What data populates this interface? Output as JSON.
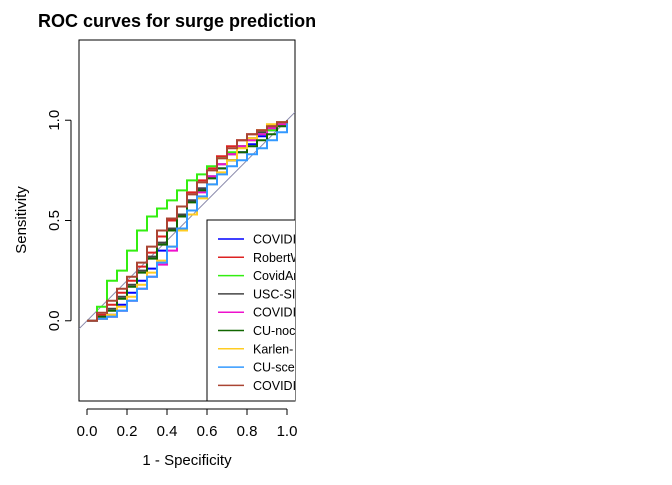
{
  "chart_data": {
    "type": "line",
    "title": "ROC curves for surge prediction",
    "xlabel": "1 - Specificity",
    "ylabel": "Sensitivity",
    "xlim": [
      -0.04,
      1.04
    ],
    "ylim": [
      -0.4,
      1.4
    ],
    "x_ticks": [
      0.0,
      0.2,
      0.4,
      0.6,
      0.8,
      1.0
    ],
    "x_tick_labels": [
      "0.0",
      "0.2",
      "0.4",
      "0.6",
      "0.8",
      "1.0"
    ],
    "y_ticks": [
      0.0,
      0.5,
      1.0
    ],
    "y_tick_labels": [
      "0.0",
      "0.5",
      "1.0"
    ],
    "diagonal_reference": true,
    "grid": false,
    "legend_placement": "bottom-right (clipped at plot edge)",
    "series": [
      {
        "name": "COVIDI",
        "color": "#0000ff",
        "x": [
          0,
          0.05,
          0.1,
          0.15,
          0.2,
          0.25,
          0.3,
          0.35,
          0.4,
          0.45,
          0.5,
          0.55,
          0.6,
          0.65,
          0.7,
          0.75,
          0.8,
          0.85,
          0.9,
          0.95,
          1
        ],
        "y": [
          0,
          0.01,
          0.03,
          0.08,
          0.14,
          0.2,
          0.26,
          0.35,
          0.45,
          0.53,
          0.6,
          0.66,
          0.72,
          0.76,
          0.8,
          0.84,
          0.88,
          0.92,
          0.95,
          0.98,
          1
        ]
      },
      {
        "name": "RobertW",
        "color": "#dd2222",
        "x": [
          0,
          0.05,
          0.1,
          0.15,
          0.2,
          0.25,
          0.3,
          0.35,
          0.4,
          0.45,
          0.5,
          0.55,
          0.6,
          0.65,
          0.7,
          0.75,
          0.8,
          0.85,
          0.9,
          0.95,
          1
        ],
        "y": [
          0,
          0.03,
          0.08,
          0.14,
          0.2,
          0.27,
          0.34,
          0.42,
          0.5,
          0.57,
          0.64,
          0.7,
          0.76,
          0.82,
          0.87,
          0.9,
          0.93,
          0.95,
          0.97,
          0.99,
          1
        ]
      },
      {
        "name": "CovidAr",
        "color": "#33ee11",
        "x": [
          0,
          0.05,
          0.1,
          0.15,
          0.2,
          0.25,
          0.3,
          0.35,
          0.4,
          0.45,
          0.5,
          0.55,
          0.6,
          0.65,
          0.7,
          0.75,
          0.8,
          0.85,
          0.9,
          0.95,
          1
        ],
        "y": [
          0,
          0.07,
          0.2,
          0.25,
          0.35,
          0.45,
          0.52,
          0.56,
          0.6,
          0.65,
          0.7,
          0.73,
          0.77,
          0.81,
          0.84,
          0.87,
          0.9,
          0.93,
          0.95,
          0.98,
          1
        ]
      },
      {
        "name": "USC-SI",
        "color": "#444444",
        "x": [
          0,
          0.05,
          0.1,
          0.15,
          0.2,
          0.25,
          0.3,
          0.35,
          0.4,
          0.45,
          0.5,
          0.55,
          0.6,
          0.65,
          0.7,
          0.75,
          0.8,
          0.85,
          0.9,
          0.95,
          1
        ],
        "y": [
          0,
          0.02,
          0.06,
          0.12,
          0.18,
          0.25,
          0.32,
          0.39,
          0.46,
          0.53,
          0.6,
          0.66,
          0.72,
          0.78,
          0.83,
          0.87,
          0.91,
          0.94,
          0.97,
          0.99,
          1
        ]
      },
      {
        "name": "COVIDI",
        "color": "#ee11cc",
        "x": [
          0,
          0.05,
          0.1,
          0.15,
          0.2,
          0.25,
          0.3,
          0.35,
          0.4,
          0.45,
          0.5,
          0.55,
          0.6,
          0.65,
          0.7,
          0.75,
          0.8,
          0.85,
          0.9,
          0.95,
          1
        ],
        "y": [
          0,
          0.01,
          0.02,
          0.05,
          0.1,
          0.16,
          0.22,
          0.28,
          0.35,
          0.45,
          0.55,
          0.64,
          0.72,
          0.78,
          0.83,
          0.87,
          0.9,
          0.93,
          0.96,
          0.98,
          1
        ]
      },
      {
        "name": "CU-noc",
        "color": "#116600",
        "x": [
          0,
          0.05,
          0.1,
          0.15,
          0.2,
          0.25,
          0.3,
          0.35,
          0.4,
          0.45,
          0.5,
          0.55,
          0.6,
          0.65,
          0.7,
          0.75,
          0.8,
          0.85,
          0.9,
          0.95,
          1
        ],
        "y": [
          0,
          0.02,
          0.05,
          0.11,
          0.17,
          0.24,
          0.31,
          0.38,
          0.45,
          0.52,
          0.59,
          0.65,
          0.71,
          0.76,
          0.8,
          0.84,
          0.87,
          0.9,
          0.93,
          0.97,
          1
        ]
      },
      {
        "name": "Karlen-",
        "color": "#ffcc22",
        "x": [
          0,
          0.05,
          0.1,
          0.15,
          0.2,
          0.25,
          0.3,
          0.35,
          0.4,
          0.45,
          0.5,
          0.55,
          0.6,
          0.65,
          0.7,
          0.75,
          0.8,
          0.85,
          0.9,
          0.95,
          1
        ],
        "y": [
          0,
          0.01,
          0.03,
          0.07,
          0.12,
          0.18,
          0.24,
          0.3,
          0.37,
          0.45,
          0.53,
          0.61,
          0.68,
          0.74,
          0.8,
          0.86,
          0.91,
          0.95,
          0.98,
          0.99,
          1
        ]
      },
      {
        "name": "CU-sce",
        "color": "#3399ff",
        "x": [
          0,
          0.05,
          0.1,
          0.15,
          0.2,
          0.25,
          0.3,
          0.35,
          0.4,
          0.45,
          0.5,
          0.55,
          0.6,
          0.65,
          0.7,
          0.75,
          0.8,
          0.85,
          0.9,
          0.95,
          1
        ],
        "y": [
          0,
          0.01,
          0.02,
          0.05,
          0.1,
          0.16,
          0.22,
          0.29,
          0.37,
          0.46,
          0.55,
          0.62,
          0.68,
          0.73,
          0.77,
          0.8,
          0.83,
          0.86,
          0.9,
          0.94,
          1
        ]
      },
      {
        "name": "COVIDI",
        "color": "#aa4433",
        "x": [
          0,
          0.05,
          0.1,
          0.15,
          0.2,
          0.25,
          0.3,
          0.35,
          0.4,
          0.45,
          0.5,
          0.55,
          0.6,
          0.65,
          0.7,
          0.75,
          0.8,
          0.85,
          0.9,
          0.95,
          1
        ],
        "y": [
          0,
          0.04,
          0.1,
          0.16,
          0.22,
          0.29,
          0.37,
          0.45,
          0.51,
          0.57,
          0.63,
          0.69,
          0.75,
          0.81,
          0.86,
          0.9,
          0.93,
          0.95,
          0.97,
          0.99,
          1
        ]
      }
    ]
  }
}
